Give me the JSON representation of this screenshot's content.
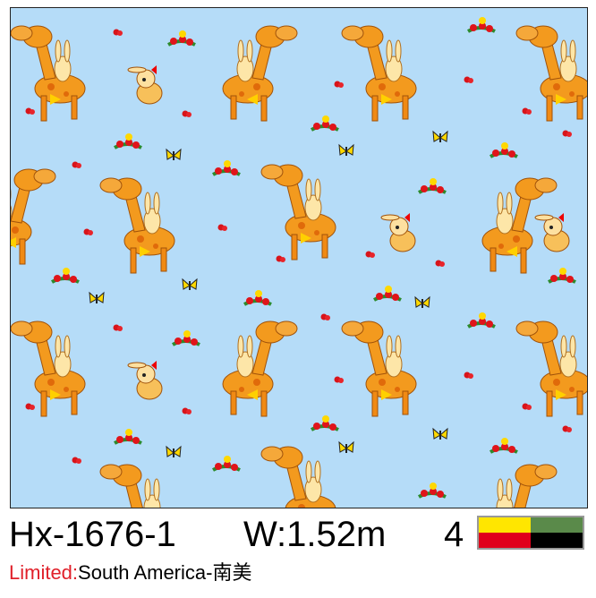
{
  "product": {
    "code": "Hx-1676-1",
    "width": "W:1.52m",
    "color_count": "4",
    "colors": [
      "#ffe600",
      "#5a8a4a",
      "#e0001b",
      "#000000"
    ],
    "limited_label": "Limited:",
    "limited_value": "South America-南美"
  },
  "pattern": {
    "background": "#b5dcf8",
    "motifs": [
      "deer-with-rabbit",
      "rabbit",
      "red-flower-cluster",
      "yellow-butterfly"
    ]
  }
}
